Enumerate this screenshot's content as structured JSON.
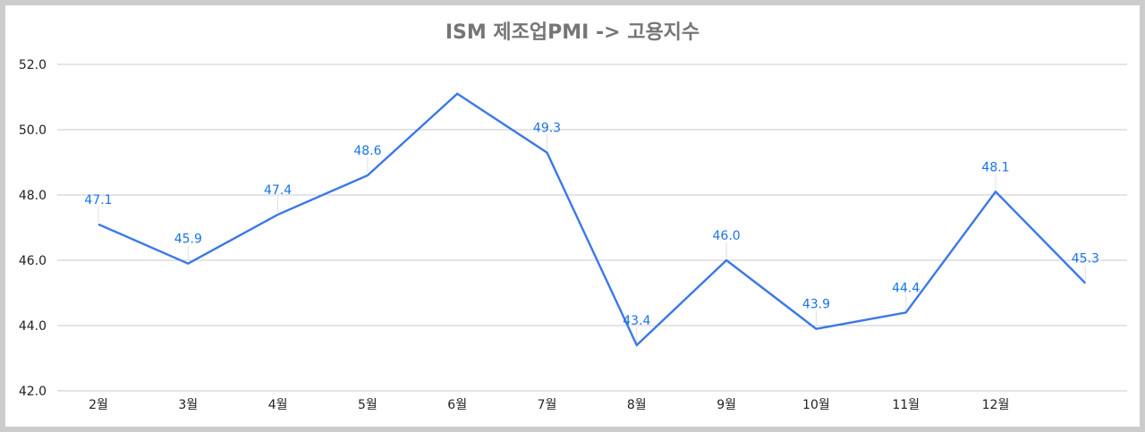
{
  "chart_data": {
    "type": "line",
    "title": "ISM 제조업PMI -> 고용지수",
    "xlabel": "",
    "ylabel": "",
    "categories": [
      "2월",
      "3월",
      "4월",
      "5월",
      "6월",
      "7월",
      "8월",
      "9월",
      "10월",
      "11월",
      "12월",
      ""
    ],
    "series": [
      {
        "values": [
          47.1,
          45.9,
          47.4,
          48.6,
          51.1,
          49.3,
          43.4,
          46.0,
          43.9,
          44.4,
          48.1,
          45.3
        ],
        "labels": [
          "47.1",
          "45.9",
          "47.4",
          "48.6",
          "",
          "49.3",
          "43.4",
          "46.0",
          "43.9",
          "44.4",
          "48.1",
          "45.3"
        ],
        "color": "#3b78e7"
      }
    ],
    "ylim": [
      42.0,
      52.0
    ],
    "yticks": [
      "42.0",
      "44.0",
      "46.0",
      "48.0",
      "50.0",
      "52.0"
    ],
    "grid": true,
    "legend": "none"
  }
}
